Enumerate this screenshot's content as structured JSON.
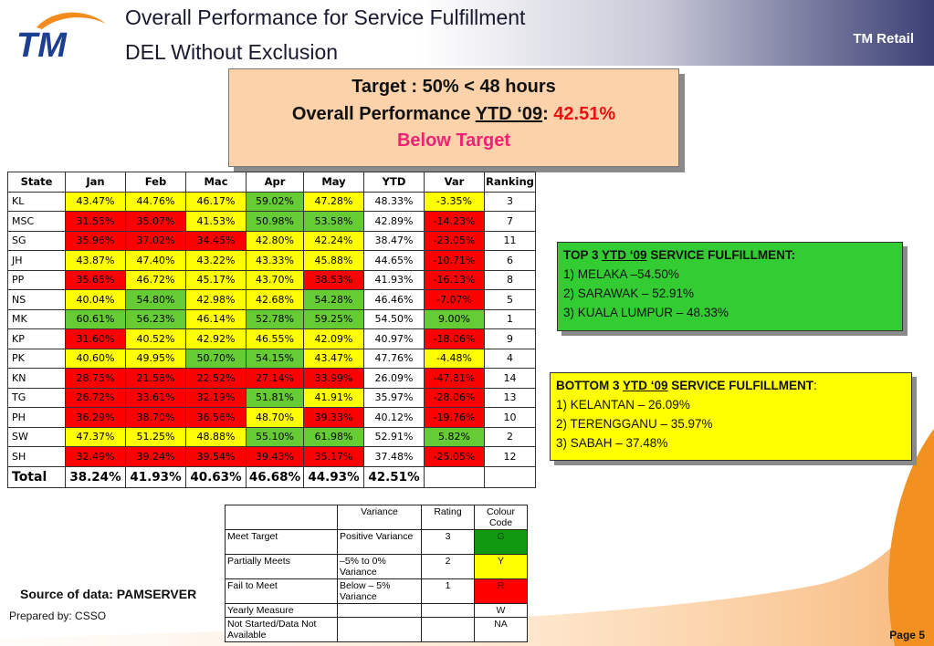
{
  "header": {
    "title_line1": "Overall Performance for Service Fulfillment",
    "title_line2": "DEL Without Exclusion",
    "brand": "TM Retail",
    "logo_text": "TM"
  },
  "target_box": {
    "line1": "Target : 50% < 48 hours",
    "line2_prefix": "Overall Performance ",
    "line2_ytd": "YTD ‘09",
    "line2_colon": ": ",
    "line2_value": "42.51%",
    "line3": "Below Target"
  },
  "colors": {
    "yellow": "#ffff00",
    "red": "#ff0000",
    "green": "#66cc33",
    "white": "#ffffff"
  },
  "performance_table": {
    "headers": [
      "State",
      "Jan",
      "Feb",
      "Mac",
      "Apr",
      "May",
      "YTD",
      "Var",
      "Ranking"
    ],
    "rows": [
      {
        "cells": [
          "KL",
          "43.47%",
          "44.76%",
          "46.17%",
          "59.02%",
          "47.28%",
          "48.33%",
          "-3.35%",
          "3"
        ],
        "colors": [
          "W",
          "Y",
          "Y",
          "Y",
          "G",
          "Y",
          "W",
          "Y",
          "W"
        ]
      },
      {
        "cells": [
          "MSC",
          "31.55%",
          "35.07%",
          "41.53%",
          "50.98%",
          "53.58%",
          "42.89%",
          "-14.23%",
          "7"
        ],
        "colors": [
          "W",
          "R",
          "R",
          "Y",
          "G",
          "G",
          "W",
          "R",
          "W"
        ]
      },
      {
        "cells": [
          "SG",
          "35.96%",
          "37.02%",
          "34.45%",
          "42.80%",
          "42.24%",
          "38.47%",
          "-23.05%",
          "11"
        ],
        "colors": [
          "W",
          "R",
          "R",
          "R",
          "Y",
          "Y",
          "W",
          "R",
          "W"
        ]
      },
      {
        "cells": [
          "JH",
          "43.87%",
          "47.40%",
          "43.22%",
          "43.33%",
          "45.88%",
          "44.65%",
          "-10.71%",
          "6"
        ],
        "colors": [
          "W",
          "Y",
          "Y",
          "Y",
          "Y",
          "Y",
          "W",
          "R",
          "W"
        ]
      },
      {
        "cells": [
          "PP",
          "35.65%",
          "46.72%",
          "45.17%",
          "43.70%",
          "38.53%",
          "41.93%",
          "-16.13%",
          "8"
        ],
        "colors": [
          "W",
          "R",
          "Y",
          "Y",
          "Y",
          "R",
          "W",
          "R",
          "W"
        ]
      },
      {
        "cells": [
          "NS",
          "40.04%",
          "54.80%",
          "42.98%",
          "42.68%",
          "54.28%",
          "46.46%",
          "-7.07%",
          "5"
        ],
        "colors": [
          "W",
          "Y",
          "G",
          "Y",
          "Y",
          "G",
          "W",
          "R",
          "W"
        ]
      },
      {
        "cells": [
          "MK",
          "60.61%",
          "56.23%",
          "46.14%",
          "52.78%",
          "59.25%",
          "54.50%",
          "9.00%",
          "1"
        ],
        "colors": [
          "W",
          "G",
          "G",
          "Y",
          "G",
          "G",
          "W",
          "G",
          "W"
        ]
      },
      {
        "cells": [
          "KP",
          "31.60%",
          "40.52%",
          "42.92%",
          "46.55%",
          "42.09%",
          "40.97%",
          "-18.06%",
          "9"
        ],
        "colors": [
          "W",
          "R",
          "Y",
          "Y",
          "Y",
          "Y",
          "W",
          "R",
          "W"
        ]
      },
      {
        "cells": [
          "PK",
          "40.60%",
          "49.95%",
          "50.70%",
          "54.15%",
          "43.47%",
          "47.76%",
          "-4.48%",
          "4"
        ],
        "colors": [
          "W",
          "Y",
          "Y",
          "G",
          "G",
          "Y",
          "W",
          "Y",
          "W"
        ]
      },
      {
        "cells": [
          "KN",
          "28.75%",
          "21.58%",
          "22.52%",
          "27.14%",
          "33.99%",
          "26.09%",
          "-47.81%",
          "14"
        ],
        "colors": [
          "W",
          "R",
          "R",
          "R",
          "R",
          "R",
          "W",
          "R",
          "W"
        ]
      },
      {
        "cells": [
          "TG",
          "26.72%",
          "33.61%",
          "32.19%",
          "51.81%",
          "41.91%",
          "35.97%",
          "-28.06%",
          "13"
        ],
        "colors": [
          "W",
          "R",
          "R",
          "R",
          "G",
          "Y",
          "W",
          "R",
          "W"
        ]
      },
      {
        "cells": [
          "PH",
          "36.29%",
          "38.70%",
          "36.56%",
          "48.70%",
          "39.33%",
          "40.12%",
          "-19.76%",
          "10"
        ],
        "colors": [
          "W",
          "R",
          "R",
          "R",
          "Y",
          "R",
          "W",
          "R",
          "W"
        ]
      },
      {
        "cells": [
          "SW",
          "47.37%",
          "51.25%",
          "48.88%",
          "55.10%",
          "61.98%",
          "52.91%",
          "5.82%",
          "2"
        ],
        "colors": [
          "W",
          "Y",
          "Y",
          "Y",
          "G",
          "G",
          "W",
          "G",
          "W"
        ]
      },
      {
        "cells": [
          "SH",
          "32.49%",
          "39.24%",
          "39.54%",
          "39.43%",
          "35.17%",
          "37.48%",
          "-25.05%",
          "12"
        ],
        "colors": [
          "W",
          "R",
          "R",
          "R",
          "R",
          "R",
          "W",
          "R",
          "W"
        ]
      }
    ],
    "total": [
      "Total",
      "38.24%",
      "41.93%",
      "40.63%",
      "46.68%",
      "44.93%",
      "42.51%",
      "",
      ""
    ]
  },
  "top3": {
    "heading_prefix": "TOP 3 ",
    "heading_ytd": "YTD ‘09",
    "heading_suffix": " SERVICE FULFILLMENT:",
    "items": [
      "1) MELAKA –54.50%",
      "2) SARAWAK – 52.91%",
      "3) KUALA LUMPUR – 48.33%"
    ]
  },
  "bottom3": {
    "heading_prefix": "BOTTOM 3 ",
    "heading_ytd": "YTD ‘09",
    "heading_suffix": " SERVICE FULFILLMENT",
    "heading_colon": ":",
    "items": [
      "1)  KELANTAN – 26.09%",
      "2)  TERENGGANU – 35.97%",
      "3)  SABAH – 37.48%"
    ]
  },
  "legend_table": {
    "headers": [
      "",
      "Variance",
      "Rating",
      "Colour Code"
    ],
    "rows": [
      {
        "cells": [
          "Meet Target",
          "Positive Variance",
          "3",
          "G"
        ],
        "color": "G"
      },
      {
        "cells": [
          "Partially Meets",
          "–5% to 0% Variance",
          "2",
          "Y"
        ],
        "color": "Y"
      },
      {
        "cells": [
          "Fail to Meet",
          "Below – 5% Variance",
          "1",
          "R"
        ],
        "color": "R"
      },
      {
        "cells": [
          "Yearly Measure",
          "",
          "",
          "W"
        ],
        "color": "W"
      },
      {
        "cells": [
          "Not Started/Data Not Available",
          "",
          "",
          "NA"
        ],
        "color": "W"
      }
    ]
  },
  "footer": {
    "source": "Source of data: PAMSERVER",
    "prepared": "Prepared by: CSSO",
    "page": "Page 5"
  }
}
